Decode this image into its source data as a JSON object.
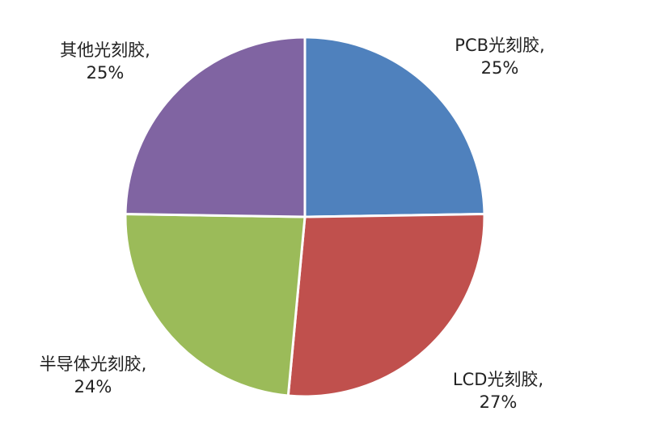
{
  "chart_data": {
    "type": "pie",
    "start_angle_deg": 0,
    "direction": "clockwise",
    "slices": [
      {
        "name": "PCB光刻胶,",
        "value": 25,
        "label": "25%",
        "color": "#4f81bd"
      },
      {
        "name": "LCD光刻胶,",
        "value": 27,
        "label": "27%",
        "color": "#c0504d"
      },
      {
        "name": "半导体光刻胶,",
        "value": 24,
        "label": "24%",
        "color": "#9bbb59"
      },
      {
        "name": "其他光刻胶,",
        "value": 25,
        "label": "25%",
        "color": "#8064a2"
      }
    ]
  }
}
